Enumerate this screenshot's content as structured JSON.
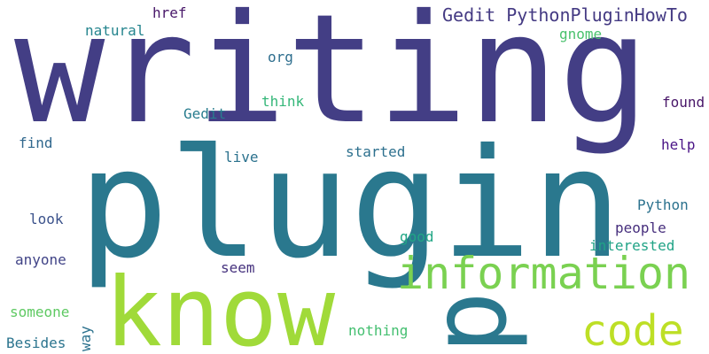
{
  "title": "",
  "words": [
    {
      "text": "writing",
      "color": "#433e85"
    },
    {
      "text": "plugin",
      "color": "#2a788e"
    },
    {
      "text": "know",
      "color": "#a0da39"
    },
    {
      "text": "information",
      "color": "#7ad151"
    },
    {
      "text": "code",
      "color": "#bddf26"
    },
    {
      "text": "p",
      "color": "#2a788e"
    },
    {
      "text": "Gedit PythonPluginHowTo",
      "color": "#443a83"
    },
    {
      "text": "natural",
      "color": "#25858e"
    },
    {
      "text": "href",
      "color": "#481769"
    },
    {
      "text": "gnome",
      "color": "#4ac16d"
    },
    {
      "text": "org",
      "color": "#2e6e8e"
    },
    {
      "text": "think",
      "color": "#35b779"
    },
    {
      "text": "found",
      "color": "#481668"
    },
    {
      "text": "Gedit",
      "color": "#287c8e"
    },
    {
      "text": "help",
      "color": "#4a1486"
    },
    {
      "text": "find",
      "color": "#31688e"
    },
    {
      "text": "live",
      "color": "#2c728e"
    },
    {
      "text": "started",
      "color": "#2d708e"
    },
    {
      "text": "look",
      "color": "#3b528b"
    },
    {
      "text": "Python",
      "color": "#2c728e"
    },
    {
      "text": "people",
      "color": "#472f7d"
    },
    {
      "text": "good",
      "color": "#21a685"
    },
    {
      "text": "interested",
      "color": "#20a386"
    },
    {
      "text": "anyone",
      "color": "#414487"
    },
    {
      "text": "seem",
      "color": "#46327e"
    },
    {
      "text": "someone",
      "color": "#5ec962"
    },
    {
      "text": "way",
      "color": "#2c728e"
    },
    {
      "text": "nothing",
      "color": "#44bf70"
    },
    {
      "text": "Besides",
      "color": "#2b748e"
    }
  ]
}
